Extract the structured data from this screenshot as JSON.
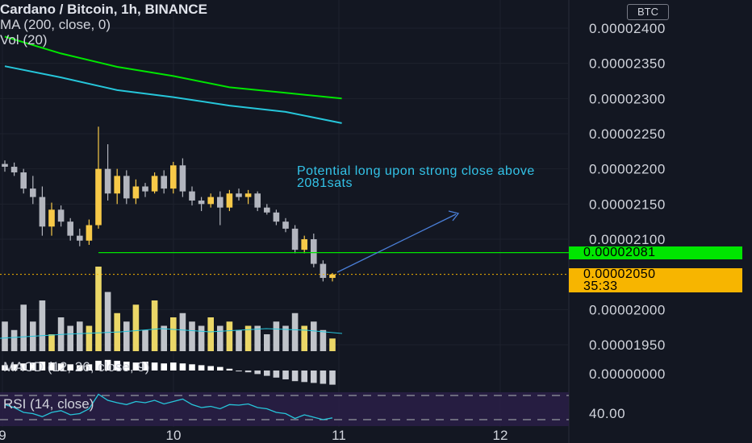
{
  "header": {
    "title": "Cardano / Bitcoin, 1h, BINANCE",
    "indicators": [
      "MA (200, close, 0)",
      "Vol (20)"
    ]
  },
  "currency_button": "BTC",
  "annotation": "Potential long upon strong close above 2081sats",
  "price_tags": {
    "level": "0.00002081",
    "last": "0.00002050",
    "countdown": "35:33"
  },
  "macd_label": "MACD (12, 26, close, 9)",
  "rsi_label": "RSI (14, close)",
  "rsi_axis_value": "40.00",
  "macd_axis_value": "0.00000000",
  "colors": {
    "background": "#131722",
    "candle_up": "#f7c948",
    "candle_down": "#b2b5be",
    "ma_fast": "#00e600",
    "ma_slow": "#26c6da",
    "level_line": "#00e600",
    "arrow": "#4a7fd8",
    "rsi_band": "#2a1f47"
  },
  "chart_data": {
    "type": "candlestick",
    "title": "Cardano / Bitcoin, 1h, BINANCE",
    "y_tick_labels": [
      "0.00002400",
      "0.00002350",
      "0.00002300",
      "0.00002250",
      "0.00002200",
      "0.00002150",
      "0.00002100",
      "0.00002000",
      "0.00001950"
    ],
    "x_tick_labels": [
      "9",
      "10",
      "11",
      "12"
    ],
    "ylim": [
      1.94e-05,
      2.42e-05
    ],
    "horizontal_level": 2.081e-05,
    "last_price": 2.05e-05,
    "ma_fast_points": [
      [
        0,
        2.388e-05
      ],
      [
        6,
        2.364e-05
      ],
      [
        12,
        2.345e-05
      ],
      [
        18,
        2.332e-05
      ],
      [
        24,
        2.316e-05
      ],
      [
        30,
        2.308e-05
      ],
      [
        36,
        2.3e-05
      ]
    ],
    "ma_slow_points": [
      [
        0,
        2.346e-05
      ],
      [
        6,
        2.33e-05
      ],
      [
        12,
        2.312e-05
      ],
      [
        18,
        2.302e-05
      ],
      [
        24,
        2.29e-05
      ],
      [
        30,
        2.281e-05
      ],
      [
        36,
        2.265e-05
      ]
    ],
    "candles": [
      {
        "o": 2.207e-05,
        "h": 2.212e-05,
        "l": 2.196e-05,
        "c": 2.203e-05
      },
      {
        "o": 2.203e-05,
        "h": 2.209e-05,
        "l": 2.19e-05,
        "c": 2.195e-05
      },
      {
        "o": 2.195e-05,
        "h": 2.2e-05,
        "l": 2.165e-05,
        "c": 2.172e-05
      },
      {
        "o": 2.172e-05,
        "h": 2.19e-05,
        "l": 2.15e-05,
        "c": 2.16e-05
      },
      {
        "o": 2.16e-05,
        "h": 2.175e-05,
        "l": 2.105e-05,
        "c": 2.118e-05
      },
      {
        "o": 2.118e-05,
        "h": 2.152e-05,
        "l": 2.105e-05,
        "c": 2.142e-05
      },
      {
        "o": 2.142e-05,
        "h": 2.148e-05,
        "l": 2.118e-05,
        "c": 2.125e-05
      },
      {
        "o": 2.125e-05,
        "h": 2.13e-05,
        "l": 2.098e-05,
        "c": 2.105e-05
      },
      {
        "o": 2.105e-05,
        "h": 2.115e-05,
        "l": 2.09e-05,
        "c": 2.098e-05
      },
      {
        "o": 2.098e-05,
        "h": 2.128e-05,
        "l": 2.092e-05,
        "c": 2.12e-05
      },
      {
        "o": 2.12e-05,
        "h": 2.26e-05,
        "l": 2.115e-05,
        "c": 2.2e-05
      },
      {
        "o": 2.2e-05,
        "h": 2.235e-05,
        "l": 2.155e-05,
        "c": 2.165e-05
      },
      {
        "o": 2.165e-05,
        "h": 2.2e-05,
        "l": 2.15e-05,
        "c": 2.19e-05
      },
      {
        "o": 2.19e-05,
        "h": 2.198e-05,
        "l": 2.15e-05,
        "c": 2.158e-05
      },
      {
        "o": 2.158e-05,
        "h": 2.185e-05,
        "l": 2.15e-05,
        "c": 2.175e-05
      },
      {
        "o": 2.175e-05,
        "h": 2.18e-05,
        "l": 2.16e-05,
        "c": 2.168e-05
      },
      {
        "o": 2.168e-05,
        "h": 2.195e-05,
        "l": 2.165e-05,
        "c": 2.19e-05
      },
      {
        "o": 2.19e-05,
        "h": 2.198e-05,
        "l": 2.165e-05,
        "c": 2.172e-05
      },
      {
        "o": 2.172e-05,
        "h": 2.21e-05,
        "l": 2.165e-05,
        "c": 2.205e-05
      },
      {
        "o": 2.205e-05,
        "h": 2.215e-05,
        "l": 2.16e-05,
        "c": 2.168e-05
      },
      {
        "o": 2.168e-05,
        "h": 2.175e-05,
        "l": 2.148e-05,
        "c": 2.155e-05
      },
      {
        "o": 2.155e-05,
        "h": 2.16e-05,
        "l": 2.14e-05,
        "c": 2.15e-05
      },
      {
        "o": 2.15e-05,
        "h": 2.165e-05,
        "l": 2.145e-05,
        "c": 2.16e-05
      },
      {
        "o": 2.16e-05,
        "h": 2.168e-05,
        "l": 2.12e-05,
        "c": 2.145e-05
      },
      {
        "o": 2.145e-05,
        "h": 2.17e-05,
        "l": 2.14e-05,
        "c": 2.165e-05
      },
      {
        "o": 2.165e-05,
        "h": 2.172e-05,
        "l": 2.155e-05,
        "c": 2.16e-05
      },
      {
        "o": 2.16e-05,
        "h": 2.17e-05,
        "l": 2.15e-05,
        "c": 2.165e-05
      },
      {
        "o": 2.165e-05,
        "h": 2.168e-05,
        "l": 2.14e-05,
        "c": 2.145e-05
      },
      {
        "o": 2.145e-05,
        "h": 2.15e-05,
        "l": 2.135e-05,
        "c": 2.138e-05
      },
      {
        "o": 2.138e-05,
        "h": 2.142e-05,
        "l": 2.12e-05,
        "c": 2.125e-05
      },
      {
        "o": 2.125e-05,
        "h": 2.13e-05,
        "l": 2.11e-05,
        "c": 2.115e-05
      },
      {
        "o": 2.115e-05,
        "h": 2.12e-05,
        "l": 2.08e-05,
        "c": 2.085e-05
      },
      {
        "o": 2.085e-05,
        "h": 2.105e-05,
        "l": 2.08e-05,
        "c": 2.1e-05
      },
      {
        "o": 2.1e-05,
        "h": 2.108e-05,
        "l": 2.06e-05,
        "c": 2.065e-05
      },
      {
        "o": 2.065e-05,
        "h": 2.07e-05,
        "l": 2.04e-05,
        "c": 2.045e-05
      },
      {
        "o": 2.045e-05,
        "h": 2.052e-05,
        "l": 2.04e-05,
        "c": 2.05e-05
      }
    ],
    "volume": [
      0.35,
      0.25,
      0.55,
      0.35,
      0.6,
      0.2,
      0.4,
      0.3,
      0.35,
      0.3,
      1.0,
      0.7,
      0.45,
      0.35,
      0.55,
      0.25,
      0.6,
      0.3,
      0.4,
      0.45,
      0.35,
      0.3,
      0.4,
      0.3,
      0.35,
      0.25,
      0.3,
      0.3,
      0.2,
      0.35,
      0.3,
      0.45,
      0.3,
      0.35,
      0.25,
      0.15
    ],
    "macd_histogram": [
      0.3,
      0.35,
      0.4,
      0.45,
      0.5,
      0.45,
      0.4,
      0.35,
      0.3,
      0.35,
      0.55,
      0.6,
      0.55,
      0.5,
      0.45,
      0.5,
      0.45,
      0.4,
      0.45,
      0.4,
      0.35,
      0.3,
      0.25,
      0.2,
      0.1,
      -0.05,
      -0.1,
      -0.2,
      -0.3,
      -0.4,
      -0.5,
      -0.6,
      -0.65,
      -0.7,
      -0.75,
      -0.8
    ],
    "rsi": [
      55,
      50,
      42,
      40,
      35,
      42,
      45,
      38,
      40,
      48,
      72,
      62,
      58,
      55,
      60,
      58,
      62,
      56,
      60,
      64,
      55,
      50,
      52,
      48,
      55,
      54,
      56,
      50,
      48,
      42,
      40,
      32,
      38,
      34,
      30,
      33
    ]
  }
}
